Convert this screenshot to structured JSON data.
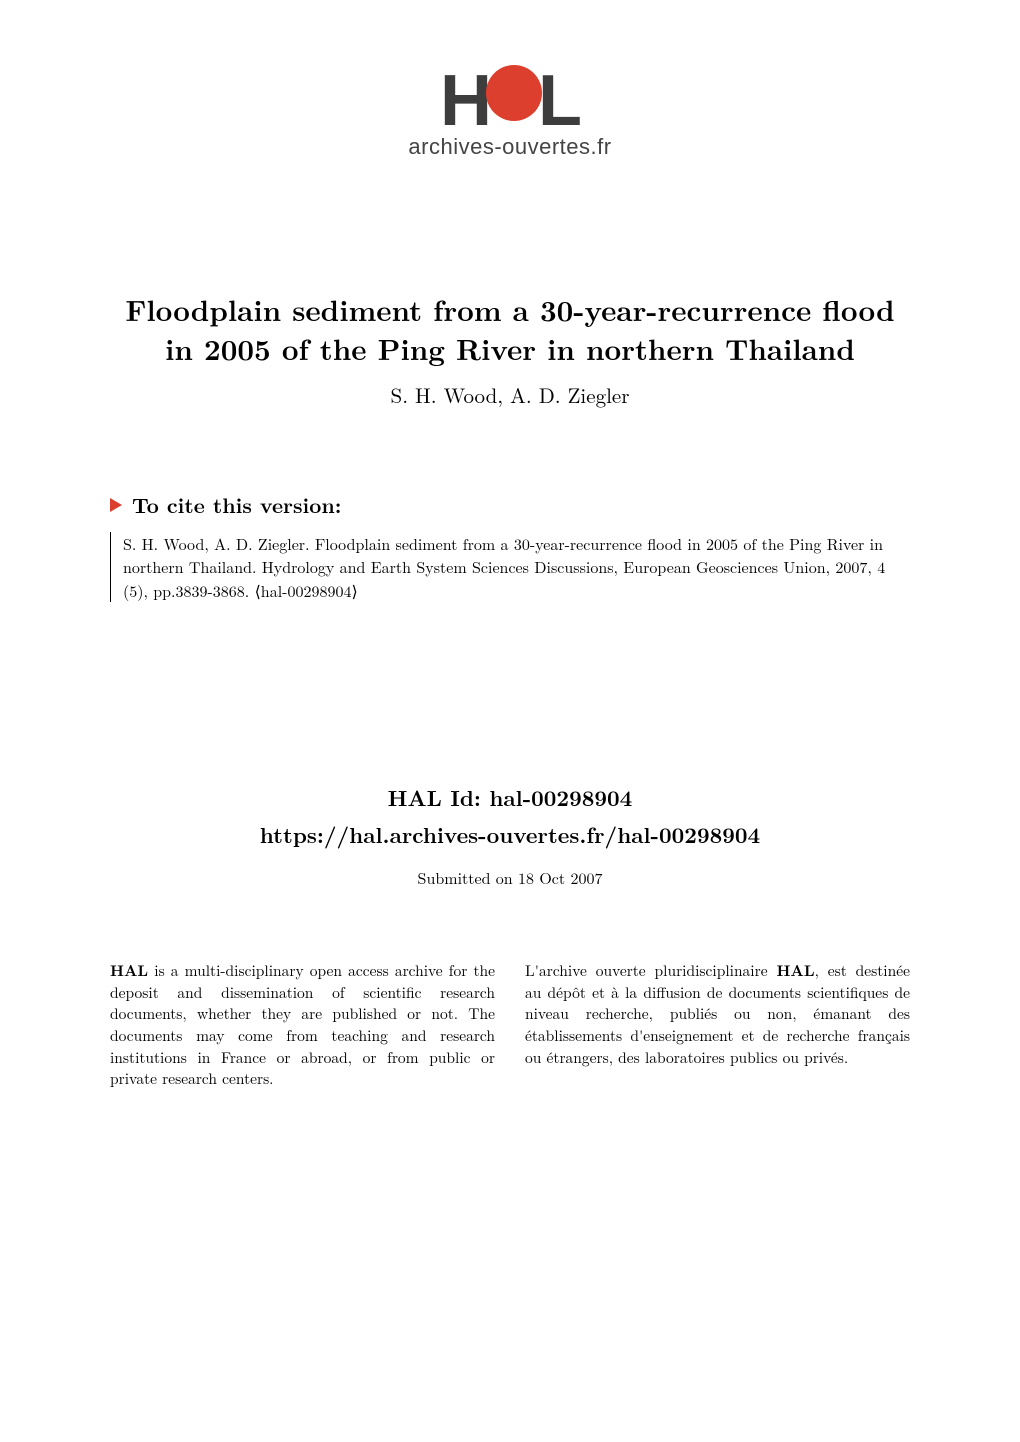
{
  "logo": {
    "text_h": "H",
    "text_l": "L",
    "subtitle": "archives-ouvertes.fr",
    "sun_color": "#dd3f2e",
    "text_color": "#3d3d3d"
  },
  "title": "Floodplain sediment from a 30-year-recurrence flood in 2005 of the Ping River in northern Thailand",
  "authors": "S. H. Wood, A. D. Ziegler",
  "cite_heading": "To cite this version:",
  "citation": "S. H. Wood, A. D. Ziegler. Floodplain sediment from a 30-year-recurrence flood in 2005 of the Ping River in northern Thailand. Hydrology and Earth System Sciences Discussions, European Geosciences Union, 2007, 4 (5), pp.3839-3868. ⟨hal-00298904⟩",
  "hal_id_label": "HAL Id: hal-00298904",
  "hal_url": "https://hal.archives-ouvertes.fr/hal-00298904",
  "submitted": "Submitted on 18 Oct 2007",
  "col_left_bold": "HAL",
  "col_left_rest": " is a multi-disciplinary open access archive for the deposit and dissemination of scientific research documents, whether they are published or not. The documents may come from teaching and research institutions in France or abroad, or from public or private research centers.",
  "col_right_start": "L'archive ouverte pluridisciplinaire ",
  "col_right_bold": "HAL",
  "col_right_rest": ", est destinée au dépôt et à la diffusion de documents scientifiques de niveau recherche, publiés ou non, émanant des établissements d'enseignement et de recherche français ou étrangers, des laboratoires publics ou privés.",
  "colors": {
    "background": "#ffffff",
    "text": "#000000",
    "accent": "#dd3f2e"
  }
}
